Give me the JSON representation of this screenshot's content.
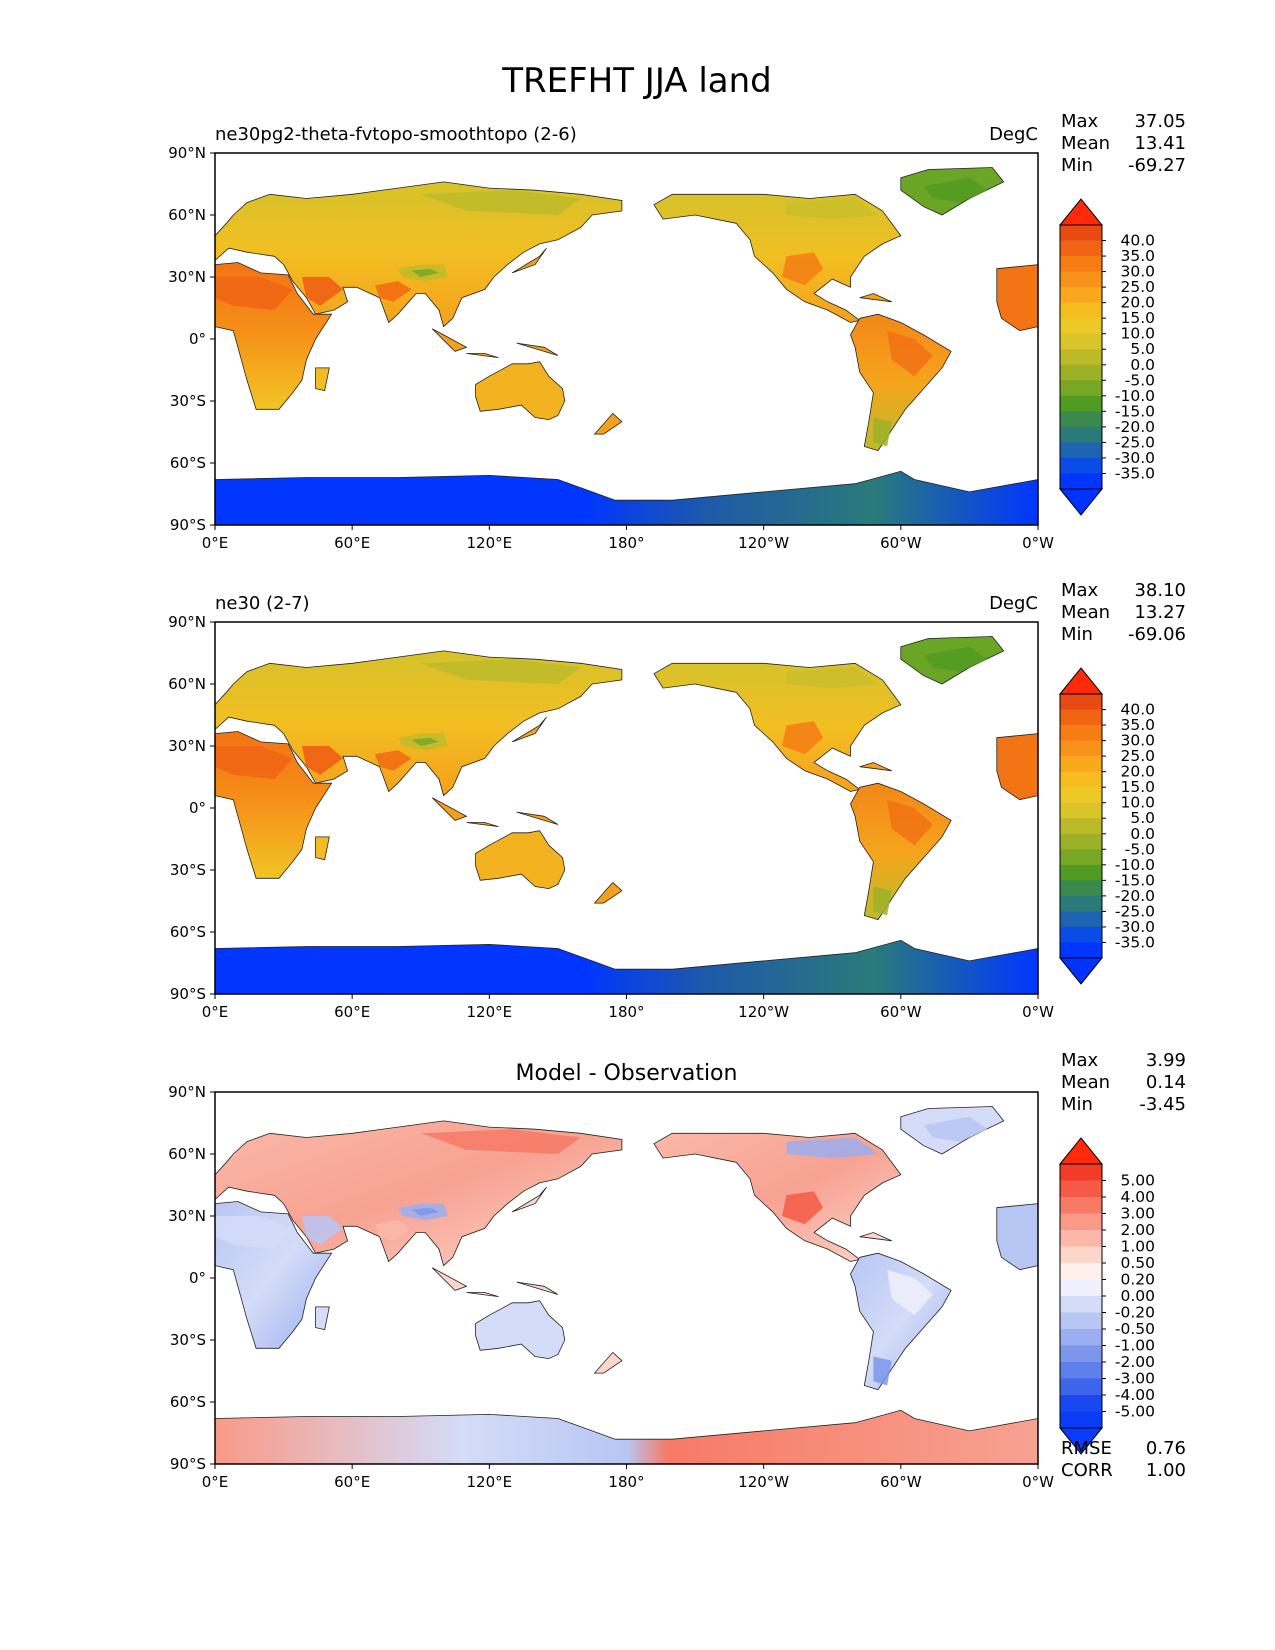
{
  "title": "TREFHT JJA land",
  "chart_data": [
    {
      "type": "heatmap",
      "panel_title_left": "ne30pg2-theta-fvtopo-smoothtopo (2-6)",
      "panel_title_center": "",
      "units": "DegC",
      "stats": [
        {
          "label": "Max",
          "value": "37.05"
        },
        {
          "label": "Mean",
          "value": "13.41"
        },
        {
          "label": "Min",
          "value": "-69.27"
        }
      ],
      "colorbar": {
        "levels": [
          "40.0",
          "35.0",
          "30.0",
          "25.0",
          "20.0",
          "15.0",
          "10.0",
          "5.0",
          "0.0",
          "-5.0",
          "-10.0",
          "-15.0",
          "-20.0",
          "-25.0",
          "-30.0",
          "-35.0"
        ],
        "colors": [
          "#e84a14",
          "#f06414",
          "#f57d14",
          "#f8921a",
          "#f9a71d",
          "#f6bd20",
          "#ecc926",
          "#d9c42a",
          "#bdba2a",
          "#9cb128",
          "#78a726",
          "#519b22",
          "#3a8a4e",
          "#2a7a7a",
          "#1e64b0",
          "#0a4ce6",
          "#0036ff"
        ],
        "over_color": "#ff2a0a",
        "under_color": "#0033ff"
      },
      "rmse": null,
      "corr": null
    },
    {
      "type": "heatmap",
      "panel_title_left": "ne30 (2-7)",
      "panel_title_center": "",
      "units": "DegC",
      "stats": [
        {
          "label": "Max",
          "value": "38.10"
        },
        {
          "label": "Mean",
          "value": "13.27"
        },
        {
          "label": "Min",
          "value": "-69.06"
        }
      ],
      "colorbar": {
        "levels": [
          "40.0",
          "35.0",
          "30.0",
          "25.0",
          "20.0",
          "15.0",
          "10.0",
          "5.0",
          "0.0",
          "-5.0",
          "-10.0",
          "-15.0",
          "-20.0",
          "-25.0",
          "-30.0",
          "-35.0"
        ],
        "colors": [
          "#e84a14",
          "#f06414",
          "#f57d14",
          "#f8921a",
          "#f9a71d",
          "#f6bd20",
          "#ecc926",
          "#d9c42a",
          "#bdba2a",
          "#9cb128",
          "#78a726",
          "#519b22",
          "#3a8a4e",
          "#2a7a7a",
          "#1e64b0",
          "#0a4ce6",
          "#0036ff"
        ],
        "over_color": "#ff2a0a",
        "under_color": "#0033ff"
      },
      "rmse": null,
      "corr": null
    },
    {
      "type": "heatmap",
      "panel_title_left": "",
      "panel_title_center": "Model - Observation",
      "units": "",
      "stats": [
        {
          "label": "Max",
          "value": "3.99"
        },
        {
          "label": "Mean",
          "value": "0.14"
        },
        {
          "label": "Min",
          "value": "-3.45"
        }
      ],
      "colorbar": {
        "levels": [
          "5.00",
          "4.00",
          "3.00",
          "2.00",
          "1.00",
          "0.50",
          "0.20",
          "0.00",
          "-0.20",
          "-0.50",
          "-1.00",
          "-2.00",
          "-3.00",
          "-4.00",
          "-5.00"
        ],
        "colors": [
          "#f03c28",
          "#f45a46",
          "#f77a66",
          "#f99a88",
          "#fbb8a8",
          "#fdd6ca",
          "#fff0ec",
          "#eef0fb",
          "#d4dcf8",
          "#b8c6f4",
          "#9aaef0",
          "#7c96ec",
          "#5e7eea",
          "#3e64ea",
          "#1a48f0",
          "#0a3cf6"
        ],
        "over_color": "#ff2a0a",
        "under_color": "#0a3cff"
      },
      "rmse": {
        "label": "RMSE",
        "value": "0.76"
      },
      "corr": {
        "label": "CORR",
        "value": "1.00"
      }
    }
  ],
  "axes": {
    "x_ticks": [
      "0°E",
      "60°E",
      "120°E",
      "180°",
      "120°W",
      "60°W",
      "0°W"
    ],
    "y_ticks": [
      "90°N",
      "60°N",
      "30°N",
      "0°",
      "30°S",
      "60°S",
      "90°S"
    ]
  }
}
